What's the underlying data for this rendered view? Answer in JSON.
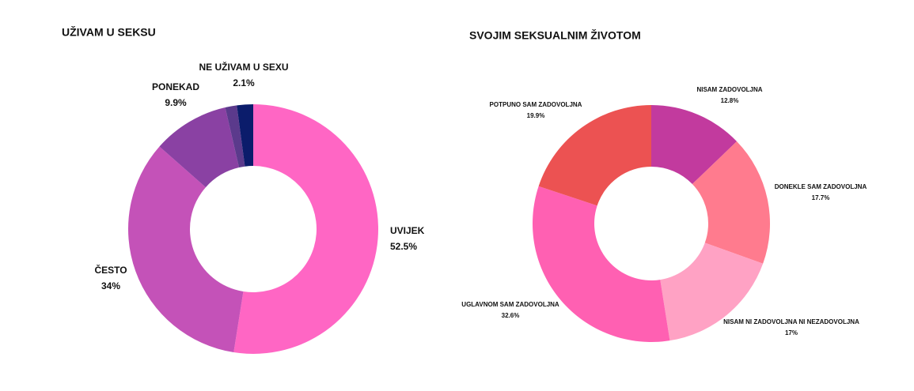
{
  "chart_data": [
    {
      "type": "donut",
      "title": "UŽIVAM U SEKSU",
      "categories": [
        "UVIJEK",
        "ČESTO",
        "PONEKAD",
        null,
        "NE UŽIVAM U SEXU"
      ],
      "values": [
        52.5,
        34,
        9.9,
        1.5,
        2.1
      ],
      "value_labels": [
        "52.5%",
        "34%",
        "9.9%",
        null,
        "2.1%"
      ],
      "colors": [
        "#ff66c4",
        "#c452b8",
        "#8a41a3",
        "#5b3a8c",
        "#0b1c6b"
      ]
    },
    {
      "type": "donut",
      "title": "SVOJIM SEKSUALNIM ŽIVOTOM",
      "categories": [
        "NISAM ZADOVOLJNA",
        "DONEKLE SAM ZADOVOLJNA",
        "NISAM NI ZADOVOLJNA NI NEZADOVOLJNA",
        "UGLAVNOM SAM ZADOVOLJNA",
        "POTPUNO SAM ZADOVOLJNA"
      ],
      "values": [
        12.8,
        17.7,
        17,
        32.6,
        19.9
      ],
      "value_labels": [
        "12.8%",
        "17.7%",
        "17%",
        "32.6%",
        "19.9%"
      ],
      "colors": [
        "#c23a9e",
        "#ff7b8e",
        "#ffa2c4",
        "#ff60b2",
        "#ec5252"
      ]
    }
  ]
}
